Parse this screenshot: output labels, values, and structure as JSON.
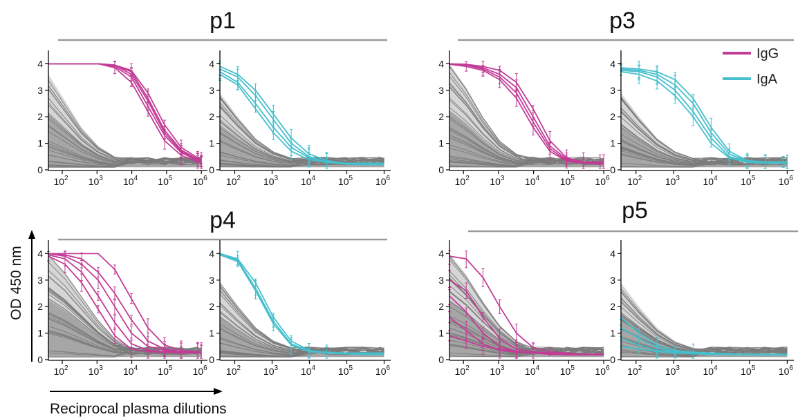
{
  "figure": {
    "ylabel": "OD 450 nm",
    "xlabel": "Reciprocal plasma dilutions",
    "legend": [
      {
        "name": "IgG",
        "color": "#c23c96"
      },
      {
        "name": "IgA",
        "color": "#45bfcc"
      }
    ]
  },
  "colors": {
    "IgG": "#c23c96",
    "IgA": "#45bfcc",
    "control_lines": "#7b7b7b",
    "control_range_fill": "#d6d6d6",
    "control_core_fill": "#9a9a9a",
    "header_line": "#999999"
  },
  "chart_data": [
    {
      "type": "line",
      "panel": "p1",
      "title": "p1",
      "isotype": "IgG",
      "x": [
        40,
        120,
        360,
        1080,
        3240,
        9720,
        29160,
        87480,
        262440,
        787320,
        1000000
      ],
      "xscale": "log",
      "xlim": [
        40,
        1500000
      ],
      "ylim": [
        0,
        4.4
      ],
      "yticks": [
        0,
        1,
        2,
        3,
        4
      ],
      "xtick_labels": [
        {
          "base": "10",
          "exp": "2"
        },
        {
          "base": "10",
          "exp": "3"
        },
        {
          "base": "10",
          "exp": "4"
        },
        {
          "base": "10",
          "exp": "5"
        },
        {
          "base": "10",
          "exp": "6"
        }
      ],
      "controls": {
        "upper": [
          3.6,
          2.6,
          1.6,
          0.9,
          0.5,
          0.35,
          0.3,
          0.3,
          0.3,
          0.3,
          0.3
        ],
        "lower": [
          0.1,
          0.1,
          0.1,
          0.1,
          0.1,
          0.1,
          0.1,
          0.1,
          0.1,
          0.1,
          0.1
        ]
      },
      "series": [
        {
          "values": [
            4.0,
            4.0,
            4.0,
            4.0,
            3.95,
            3.7,
            2.7,
            1.5,
            0.75,
            0.4,
            0.35
          ]
        },
        {
          "values": [
            4.0,
            4.0,
            4.0,
            4.0,
            3.9,
            3.5,
            2.4,
            1.3,
            0.65,
            0.35,
            0.32
          ]
        },
        {
          "values": [
            4.0,
            4.0,
            4.0,
            4.0,
            3.95,
            3.6,
            2.6,
            1.4,
            0.7,
            0.38,
            0.33
          ]
        },
        {
          "values": [
            4.0,
            4.0,
            4.0,
            4.0,
            3.85,
            3.3,
            2.2,
            1.1,
            0.55,
            0.3,
            0.3
          ]
        },
        {
          "values": [
            4.0,
            4.0,
            4.0,
            4.0,
            3.95,
            3.75,
            2.9,
            1.7,
            0.85,
            0.45,
            0.38
          ]
        }
      ]
    },
    {
      "type": "line",
      "panel": "p1",
      "isotype": "IgA",
      "x": [
        40,
        120,
        360,
        1080,
        3240,
        9720,
        29160,
        87480,
        262440,
        787320,
        1000000
      ],
      "xscale": "log",
      "xlim": [
        40,
        1500000
      ],
      "ylim": [
        0,
        4.4
      ],
      "yticks": [
        0,
        1,
        2,
        3,
        4
      ],
      "xtick_labels": [
        {
          "base": "10",
          "exp": "2"
        },
        {
          "base": "10",
          "exp": "3"
        },
        {
          "base": "10",
          "exp": "4"
        },
        {
          "base": "10",
          "exp": "5"
        },
        {
          "base": "10",
          "exp": "6"
        }
      ],
      "controls": {
        "upper": [
          2.9,
          2.0,
          1.2,
          0.7,
          0.45,
          0.35,
          0.3,
          0.3,
          0.3,
          0.3,
          0.3
        ],
        "lower": [
          0.1,
          0.1,
          0.1,
          0.1,
          0.1,
          0.1,
          0.1,
          0.1,
          0.1,
          0.1,
          0.1
        ]
      },
      "series": [
        {
          "values": [
            3.9,
            3.6,
            3.0,
            2.1,
            1.2,
            0.6,
            0.35,
            0.25,
            0.25,
            0.25,
            0.25
          ]
        },
        {
          "values": [
            3.8,
            3.5,
            2.8,
            1.9,
            1.0,
            0.5,
            0.3,
            0.25,
            0.22,
            0.22,
            0.22
          ]
        },
        {
          "values": [
            3.7,
            3.3,
            2.5,
            1.6,
            0.85,
            0.45,
            0.3,
            0.22,
            0.2,
            0.2,
            0.2
          ]
        },
        {
          "values": [
            3.6,
            3.2,
            2.3,
            1.4,
            0.7,
            0.38,
            0.28,
            0.22,
            0.2,
            0.2,
            0.2
          ]
        }
      ]
    },
    {
      "type": "line",
      "panel": "p3",
      "title": "p3",
      "isotype": "IgG",
      "x": [
        40,
        120,
        360,
        1080,
        3240,
        9720,
        29160,
        87480,
        262440,
        787320,
        1000000
      ],
      "xscale": "log",
      "xlim": [
        40,
        1500000
      ],
      "ylim": [
        0,
        4.4
      ],
      "yticks": [
        0,
        1,
        2,
        3,
        4
      ],
      "xtick_labels": [
        {
          "base": "10",
          "exp": "2"
        },
        {
          "base": "10",
          "exp": "3"
        },
        {
          "base": "10",
          "exp": "4"
        },
        {
          "base": "10",
          "exp": "5"
        },
        {
          "base": "10",
          "exp": "6"
        }
      ],
      "controls": {
        "upper": [
          4.0,
          3.1,
          2.0,
          1.1,
          0.6,
          0.4,
          0.35,
          0.3,
          0.3,
          0.3,
          0.3
        ],
        "lower": [
          0.1,
          0.1,
          0.1,
          0.1,
          0.1,
          0.1,
          0.1,
          0.1,
          0.1,
          0.1,
          0.1
        ]
      },
      "series": [
        {
          "values": [
            4.0,
            3.98,
            3.9,
            3.75,
            3.3,
            2.3,
            1.1,
            0.45,
            0.3,
            0.28,
            0.28
          ]
        },
        {
          "values": [
            4.0,
            3.95,
            3.85,
            3.6,
            3.1,
            2.0,
            0.9,
            0.4,
            0.28,
            0.25,
            0.25
          ]
        },
        {
          "values": [
            4.0,
            3.95,
            3.8,
            3.5,
            2.9,
            1.8,
            0.8,
            0.35,
            0.25,
            0.25,
            0.25
          ]
        },
        {
          "values": [
            3.98,
            3.9,
            3.75,
            3.4,
            2.7,
            1.6,
            0.7,
            0.32,
            0.25,
            0.22,
            0.22
          ]
        }
      ]
    },
    {
      "type": "line",
      "panel": "p3",
      "isotype": "IgA",
      "x": [
        40,
        120,
        360,
        1080,
        3240,
        9720,
        29160,
        87480,
        262440,
        787320,
        1000000
      ],
      "xscale": "log",
      "xlim": [
        40,
        1500000
      ],
      "ylim": [
        0,
        4.4
      ],
      "yticks": [
        0,
        1,
        2,
        3,
        4
      ],
      "xtick_labels": [
        {
          "base": "10",
          "exp": "2"
        },
        {
          "base": "10",
          "exp": "3"
        },
        {
          "base": "10",
          "exp": "4"
        },
        {
          "base": "10",
          "exp": "5"
        },
        {
          "base": "10",
          "exp": "6"
        }
      ],
      "controls": {
        "upper": [
          2.9,
          2.0,
          1.2,
          0.7,
          0.45,
          0.35,
          0.3,
          0.3,
          0.3,
          0.3,
          0.3
        ],
        "lower": [
          0.1,
          0.1,
          0.1,
          0.1,
          0.1,
          0.1,
          0.1,
          0.1,
          0.1,
          0.1,
          0.1
        ]
      },
      "series": [
        {
          "values": [
            3.85,
            3.8,
            3.7,
            3.4,
            2.7,
            1.6,
            0.7,
            0.35,
            0.3,
            0.3,
            0.3
          ]
        },
        {
          "values": [
            3.8,
            3.75,
            3.6,
            3.2,
            2.5,
            1.4,
            0.6,
            0.32,
            0.28,
            0.28,
            0.28
          ]
        },
        {
          "values": [
            3.75,
            3.7,
            3.5,
            3.0,
            2.2,
            1.2,
            0.5,
            0.3,
            0.25,
            0.25,
            0.25
          ]
        },
        {
          "values": [
            3.7,
            3.6,
            3.35,
            2.8,
            2.0,
            1.0,
            0.45,
            0.28,
            0.25,
            0.25,
            0.25
          ]
        }
      ]
    },
    {
      "type": "line",
      "panel": "p4",
      "title": "p4",
      "isotype": "IgG",
      "x": [
        40,
        120,
        360,
        1080,
        3240,
        9720,
        29160,
        87480,
        262440,
        787320,
        1000000
      ],
      "xscale": "log",
      "xlim": [
        40,
        1500000
      ],
      "ylim": [
        0,
        4.4
      ],
      "yticks": [
        0,
        1,
        2,
        3,
        4
      ],
      "xtick_labels": [
        {
          "base": "10",
          "exp": "2"
        },
        {
          "base": "10",
          "exp": "3"
        },
        {
          "base": "10",
          "exp": "4"
        },
        {
          "base": "10",
          "exp": "5"
        },
        {
          "base": "10",
          "exp": "6"
        }
      ],
      "controls": {
        "upper": [
          4.0,
          3.3,
          2.4,
          1.5,
          0.8,
          0.45,
          0.35,
          0.3,
          0.3,
          0.3,
          0.3
        ],
        "lower": [
          0.1,
          0.1,
          0.1,
          0.1,
          0.1,
          0.1,
          0.1,
          0.1,
          0.1,
          0.1,
          0.1
        ]
      },
      "series": [
        {
          "values": [
            4.0,
            4.0,
            4.0,
            4.0,
            3.4,
            2.3,
            1.2,
            0.55,
            0.35,
            0.3,
            0.3
          ]
        },
        {
          "values": [
            4.0,
            3.95,
            3.8,
            3.3,
            2.5,
            1.5,
            0.7,
            0.4,
            0.3,
            0.28,
            0.28
          ]
        },
        {
          "values": [
            4.0,
            3.9,
            3.6,
            3.0,
            2.0,
            1.0,
            0.5,
            0.35,
            0.3,
            0.28,
            0.28
          ]
        },
        {
          "values": [
            3.95,
            3.8,
            3.3,
            2.4,
            1.4,
            0.6,
            0.35,
            0.3,
            0.28,
            0.25,
            0.25
          ]
        },
        {
          "values": [
            3.9,
            3.6,
            2.9,
            1.9,
            0.9,
            0.4,
            0.3,
            0.28,
            0.25,
            0.25,
            0.25
          ]
        }
      ]
    },
    {
      "type": "line",
      "panel": "p4",
      "isotype": "IgA",
      "x": [
        40,
        120,
        360,
        1080,
        3240,
        9720,
        29160,
        87480,
        262440,
        787320,
        1000000
      ],
      "xscale": "log",
      "xlim": [
        40,
        1500000
      ],
      "ylim": [
        0,
        4.4
      ],
      "yticks": [
        0,
        1,
        2,
        3,
        4
      ],
      "xtick_labels": [
        {
          "base": "10",
          "exp": "2"
        },
        {
          "base": "10",
          "exp": "3"
        },
        {
          "base": "10",
          "exp": "4"
        },
        {
          "base": "10",
          "exp": "5"
        },
        {
          "base": "10",
          "exp": "6"
        }
      ],
      "controls": {
        "upper": [
          2.9,
          2.0,
          1.2,
          0.7,
          0.45,
          0.35,
          0.3,
          0.3,
          0.3,
          0.3,
          0.3
        ],
        "lower": [
          0.1,
          0.1,
          0.1,
          0.1,
          0.1,
          0.1,
          0.1,
          0.1,
          0.1,
          0.1,
          0.1
        ]
      },
      "series": [
        {
          "values": [
            4.0,
            3.8,
            2.9,
            1.6,
            0.7,
            0.35,
            0.28,
            0.25,
            0.25,
            0.25,
            0.25
          ]
        },
        {
          "values": [
            4.0,
            3.75,
            2.7,
            1.45,
            0.6,
            0.32,
            0.25,
            0.22,
            0.22,
            0.22,
            0.22
          ]
        },
        {
          "values": [
            3.95,
            3.7,
            2.6,
            1.35,
            0.55,
            0.3,
            0.25,
            0.22,
            0.2,
            0.2,
            0.2
          ]
        }
      ]
    },
    {
      "type": "line",
      "panel": "p5",
      "title": "p5",
      "isotype": "IgG",
      "x": [
        40,
        120,
        360,
        1080,
        3240,
        9720,
        29160,
        87480,
        262440,
        787320,
        1000000
      ],
      "xscale": "log",
      "xlim": [
        40,
        1500000
      ],
      "ylim": [
        0,
        4.4
      ],
      "yticks": [
        0,
        1,
        2,
        3,
        4
      ],
      "xtick_labels": [
        {
          "base": "10",
          "exp": "2"
        },
        {
          "base": "10",
          "exp": "3"
        },
        {
          "base": "10",
          "exp": "4"
        },
        {
          "base": "10",
          "exp": "5"
        },
        {
          "base": "10",
          "exp": "6"
        }
      ],
      "controls": {
        "upper": [
          4.0,
          3.2,
          2.2,
          1.3,
          0.7,
          0.4,
          0.35,
          0.3,
          0.3,
          0.3,
          0.3
        ],
        "lower": [
          0.1,
          0.1,
          0.1,
          0.1,
          0.1,
          0.1,
          0.1,
          0.1,
          0.1,
          0.1,
          0.1
        ]
      },
      "series": [
        {
          "values": [
            3.9,
            3.8,
            3.1,
            2.0,
            1.0,
            0.45,
            0.3,
            0.25,
            0.2,
            0.2,
            0.2
          ]
        },
        {
          "values": [
            3.0,
            2.6,
            1.6,
            0.8,
            0.4,
            0.3,
            0.25,
            0.2,
            0.2,
            0.2,
            0.2
          ]
        },
        {
          "values": [
            2.4,
            1.8,
            1.0,
            0.5,
            0.3,
            0.25,
            0.22,
            0.2,
            0.2,
            0.2,
            0.2
          ]
        },
        {
          "values": [
            1.6,
            1.1,
            0.6,
            0.35,
            0.28,
            0.25,
            0.2,
            0.18,
            0.18,
            0.18,
            0.18
          ]
        },
        {
          "values": [
            0.9,
            0.7,
            0.5,
            0.4,
            0.32,
            0.25,
            0.22,
            0.2,
            0.2,
            0.2,
            0.2
          ]
        }
      ]
    },
    {
      "type": "line",
      "panel": "p5",
      "isotype": "IgA",
      "x": [
        40,
        120,
        360,
        1080,
        3240,
        9720,
        29160,
        87480,
        262440,
        787320,
        1000000
      ],
      "xscale": "log",
      "xlim": [
        40,
        1500000
      ],
      "ylim": [
        0,
        4.4
      ],
      "yticks": [
        0,
        1,
        2,
        3,
        4
      ],
      "xtick_labels": [
        {
          "base": "10",
          "exp": "2"
        },
        {
          "base": "10",
          "exp": "3"
        },
        {
          "base": "10",
          "exp": "4"
        },
        {
          "base": "10",
          "exp": "5"
        },
        {
          "base": "10",
          "exp": "6"
        }
      ],
      "controls": {
        "upper": [
          2.9,
          2.0,
          1.2,
          0.7,
          0.45,
          0.35,
          0.3,
          0.3,
          0.3,
          0.3,
          0.3
        ],
        "lower": [
          0.1,
          0.1,
          0.1,
          0.1,
          0.1,
          0.1,
          0.1,
          0.1,
          0.1,
          0.1,
          0.1
        ]
      },
      "series": [
        {
          "values": [
            1.6,
            1.0,
            0.55,
            0.35,
            0.28,
            0.25,
            0.22,
            0.2,
            0.2,
            0.2,
            0.2
          ]
        },
        {
          "values": [
            1.2,
            0.8,
            0.45,
            0.3,
            0.25,
            0.22,
            0.2,
            0.2,
            0.2,
            0.2,
            0.2
          ]
        },
        {
          "values": [
            0.8,
            0.55,
            0.35,
            0.28,
            0.25,
            0.22,
            0.2,
            0.2,
            0.18,
            0.18,
            0.18
          ]
        },
        {
          "values": [
            0.5,
            0.4,
            0.3,
            0.25,
            0.22,
            0.2,
            0.2,
            0.18,
            0.18,
            0.18,
            0.18
          ]
        }
      ]
    }
  ]
}
